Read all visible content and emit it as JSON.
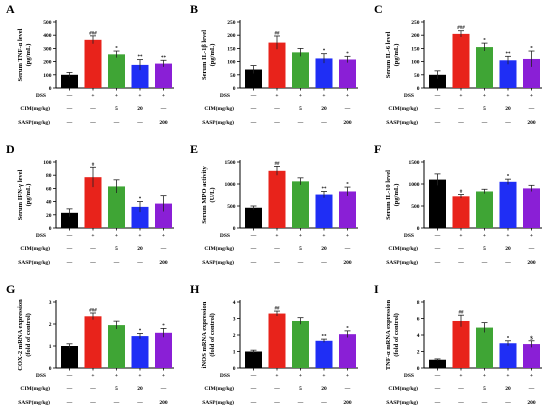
{
  "colors": [
    "#000000",
    "#e8231b",
    "#3fa535",
    "#1f2ef5",
    "#8a1fd6"
  ],
  "conditions": {
    "labels": [
      "DSS",
      "CIM(mg/kg)",
      "SASP(mg/kg)"
    ],
    "rows": [
      [
        "—",
        "+",
        "+",
        "+",
        "+"
      ],
      [
        "—",
        "—",
        "5",
        "20",
        "—"
      ],
      [
        "—",
        "—",
        "—",
        "—",
        "200"
      ]
    ]
  },
  "chart_data": [
    {
      "type": "bar",
      "panel": "A",
      "ylabel": "Serum TNF-α level (pg/mL)",
      "ylim": [
        0,
        500
      ],
      "yticks": [
        0,
        100,
        200,
        300,
        400,
        500
      ],
      "values": [
        100,
        365,
        255,
        175,
        185
      ],
      "errors": [
        18,
        30,
        25,
        40,
        25
      ],
      "sig": [
        "",
        "###",
        "*",
        "**",
        "**"
      ]
    },
    {
      "type": "bar",
      "panel": "B",
      "ylabel": "Serum IL-1β level (pg/mL)",
      "ylim": [
        0,
        250
      ],
      "yticks": [
        0,
        50,
        100,
        150,
        200,
        250
      ],
      "values": [
        70,
        172,
        135,
        112,
        108
      ],
      "errors": [
        15,
        25,
        15,
        18,
        12
      ],
      "sig": [
        "",
        "##",
        "",
        "*",
        "*"
      ]
    },
    {
      "type": "bar",
      "panel": "C",
      "ylabel": "Serum IL-6 level (pg/mL)",
      "ylim": [
        0,
        250
      ],
      "yticks": [
        0,
        50,
        100,
        150,
        200,
        250
      ],
      "values": [
        50,
        205,
        155,
        105,
        110
      ],
      "errors": [
        15,
        12,
        15,
        15,
        30
      ],
      "sig": [
        "",
        "###",
        "*",
        "**",
        "*"
      ]
    },
    {
      "type": "bar",
      "panel": "D",
      "ylabel": "Serum IFN-γ level (pg/mL)",
      "ylim": [
        0,
        100
      ],
      "yticks": [
        0,
        20,
        40,
        60,
        80,
        100
      ],
      "values": [
        23,
        77,
        63,
        32,
        37
      ],
      "errors": [
        6,
        15,
        10,
        8,
        12
      ],
      "sig": [
        "",
        "#",
        "",
        "*",
        ""
      ]
    },
    {
      "type": "bar",
      "panel": "E",
      "ylabel": "Serum MPO activity (U/L)",
      "ylim": [
        0,
        1500
      ],
      "yticks": [
        0,
        500,
        1000,
        1500
      ],
      "values": [
        460,
        1300,
        1060,
        760,
        830
      ],
      "errors": [
        40,
        100,
        80,
        70,
        100
      ],
      "sig": [
        "",
        "##",
        "",
        "**",
        "*"
      ]
    },
    {
      "type": "bar",
      "panel": "F",
      "ylabel": "Serum IL-10 level (pg/mL)",
      "ylim": [
        0,
        1500
      ],
      "yticks": [
        0,
        500,
        1000,
        1500
      ],
      "values": [
        1100,
        720,
        830,
        1050,
        900
      ],
      "errors": [
        130,
        40,
        50,
        60,
        70
      ],
      "sig": [
        "",
        "#",
        "",
        "*",
        ""
      ]
    },
    {
      "type": "bar",
      "panel": "G",
      "ylabel": "COX-2 mRNA expression (fold of control)",
      "ylim": [
        0,
        3
      ],
      "yticks": [
        0,
        1,
        2,
        3
      ],
      "values": [
        1.0,
        2.35,
        1.95,
        1.45,
        1.6
      ],
      "errors": [
        0.1,
        0.15,
        0.18,
        0.12,
        0.2
      ],
      "sig": [
        "",
        "###",
        "",
        "*",
        "*"
      ]
    },
    {
      "type": "bar",
      "panel": "H",
      "ylabel": "iNOS mRNA expression (fold of control)",
      "ylim": [
        0,
        4
      ],
      "yticks": [
        0,
        1,
        2,
        3,
        4
      ],
      "values": [
        1.0,
        3.3,
        2.85,
        1.65,
        2.05
      ],
      "errors": [
        0.08,
        0.15,
        0.2,
        0.1,
        0.2
      ],
      "sig": [
        "",
        "##",
        "",
        "**",
        "*"
      ]
    },
    {
      "type": "bar",
      "panel": "I",
      "ylabel": "TNF-α mRNA expression (fold of control)",
      "ylim": [
        0,
        8
      ],
      "yticks": [
        0,
        2,
        4,
        6,
        8
      ],
      "values": [
        1.0,
        5.7,
        4.9,
        3.0,
        2.9
      ],
      "errors": [
        0.1,
        0.7,
        0.6,
        0.3,
        0.4
      ],
      "sig": [
        "",
        "##",
        "",
        "*",
        "$"
      ]
    }
  ]
}
